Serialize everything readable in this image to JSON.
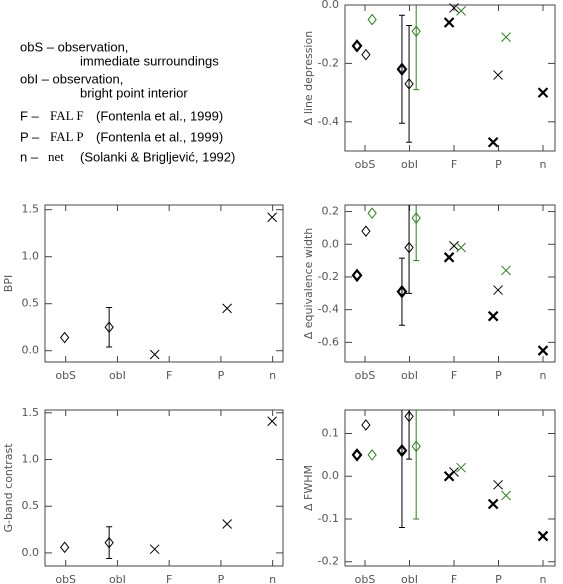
{
  "key_text": [
    {
      "label": "obS – observation,",
      "sub": "immediate surroundings"
    },
    {
      "label": "obI – observation,",
      "sub": "bright point interior"
    },
    {
      "label": "F –",
      "model": "FAL F",
      "ref": "(Fontenla et al., 1999)"
    },
    {
      "label": "P –",
      "model": "FAL P",
      "ref": "(Fontenla et al., 1999)"
    },
    {
      "label": "n –",
      "model": "net",
      "ref": "(Solanki & Brigljević, 1992)"
    }
  ],
  "chart_data": [
    {
      "type": "scatter",
      "y_label": "Δ line depression",
      "xlim": [
        0.55,
        5.27
      ],
      "ylim": [
        -0.5,
        0.0
      ],
      "xticks": [
        {
          "value": 1,
          "label": "obS"
        },
        {
          "value": 2,
          "label": "obI"
        },
        {
          "value": 3,
          "label": "F"
        },
        {
          "value": 4,
          "label": "P"
        },
        {
          "value": 5,
          "label": "n"
        }
      ],
      "yticks": [
        -0.4,
        -0.2,
        {
          "value": 0,
          "label": "0.0"
        }
      ],
      "series": [
        {
          "marker": "diamond",
          "color": "#000000",
          "linewidth": 2.2,
          "x": [
            0.82,
            1.83
          ],
          "values": [
            -0.14,
            -0.22
          ],
          "errors": [
            null,
            0.185
          ]
        },
        {
          "marker": "diamond",
          "color": "#000000",
          "linewidth": 1,
          "x": [
            1.02,
            1.99
          ],
          "values": [
            -0.17,
            -0.27
          ],
          "errors": [
            null,
            0.2
          ]
        },
        {
          "marker": "diamond",
          "color": "#2e7d1f",
          "linewidth": 1,
          "x": [
            1.16,
            2.15
          ],
          "values": [
            -0.05,
            -0.09
          ],
          "errors": [
            null,
            0.2
          ]
        },
        {
          "marker": "cross",
          "color": "#000000",
          "linewidth": 2.2,
          "x": [
            2.89,
            3.88,
            5.0
          ],
          "values": [
            -0.06,
            -0.47,
            -0.3
          ]
        },
        {
          "marker": "cross",
          "color": "#000000",
          "linewidth": 1,
          "x": [
            3.0,
            3.99
          ],
          "values": [
            -0.01,
            -0.24
          ]
        },
        {
          "marker": "cross",
          "color": "#2e7d1f",
          "linewidth": 1,
          "x": [
            3.16,
            4.17
          ],
          "values": [
            -0.02,
            -0.11
          ]
        }
      ]
    },
    {
      "type": "scatter",
      "y_label": "BPI",
      "xlim": [
        0.6,
        5.2
      ],
      "ylim": [
        -0.12,
        1.55
      ],
      "xticks": [
        {
          "value": 1,
          "label": "obS"
        },
        {
          "value": 2,
          "label": "obI"
        },
        {
          "value": 3,
          "label": "F"
        },
        {
          "value": 4,
          "label": "P"
        },
        {
          "value": 5,
          "label": "n"
        }
      ],
      "yticks": [
        {
          "value": 0,
          "label": "0.0"
        },
        0.5,
        {
          "value": 1,
          "label": "1.0"
        },
        1.5
      ],
      "series": [
        {
          "marker": "diamond",
          "color": "#000000",
          "linewidth": 1,
          "x": [
            0.98,
            1.84
          ],
          "values": [
            0.14,
            0.25
          ],
          "errors": [
            null,
            0.21
          ]
        },
        {
          "marker": "cross",
          "color": "#000000",
          "linewidth": 1,
          "x": [
            2.72,
            4.12,
            4.99
          ],
          "values": [
            -0.04,
            0.45,
            1.42
          ]
        }
      ]
    },
    {
      "type": "scatter",
      "y_label": "Δ equivalence width",
      "xlim": [
        0.55,
        5.27
      ],
      "ylim": [
        -0.72,
        0.24
      ],
      "xticks": [
        {
          "value": 1,
          "label": "obS"
        },
        {
          "value": 2,
          "label": "obI"
        },
        {
          "value": 3,
          "label": "F"
        },
        {
          "value": 4,
          "label": "P"
        },
        {
          "value": 5,
          "label": "n"
        }
      ],
      "yticks": [
        -0.6,
        -0.4,
        -0.2,
        {
          "value": 0,
          "label": "0.0"
        },
        0.2
      ],
      "series": [
        {
          "marker": "diamond",
          "color": "#000000",
          "linewidth": 2.2,
          "x": [
            0.82,
            1.83
          ],
          "values": [
            -0.19,
            -0.29
          ],
          "errors": [
            null,
            0.205
          ]
        },
        {
          "marker": "diamond",
          "color": "#000000",
          "linewidth": 1,
          "x": [
            1.02,
            1.99
          ],
          "values": [
            0.08,
            -0.02
          ],
          "errors": [
            null,
            0.28
          ]
        },
        {
          "marker": "diamond",
          "color": "#2e7d1f",
          "linewidth": 1,
          "x": [
            1.16,
            2.15
          ],
          "values": [
            0.19,
            0.16
          ],
          "errors": [
            null,
            0.26
          ]
        },
        {
          "marker": "cross",
          "color": "#000000",
          "linewidth": 2.2,
          "x": [
            2.89,
            3.88,
            5.0
          ],
          "values": [
            -0.08,
            -0.44,
            -0.65
          ]
        },
        {
          "marker": "cross",
          "color": "#000000",
          "linewidth": 1,
          "x": [
            3.0,
            3.99
          ],
          "values": [
            -0.01,
            -0.28
          ]
        },
        {
          "marker": "cross",
          "color": "#2e7d1f",
          "linewidth": 1,
          "x": [
            3.16,
            4.17
          ],
          "values": [
            -0.02,
            -0.16
          ]
        }
      ]
    },
    {
      "type": "scatter",
      "y_label": "G-band contrast",
      "xlim": [
        0.6,
        5.2
      ],
      "ylim": [
        -0.14,
        1.53
      ],
      "xticks": [
        {
          "value": 1,
          "label": "obS"
        },
        {
          "value": 2,
          "label": "obI"
        },
        {
          "value": 3,
          "label": "F"
        },
        {
          "value": 4,
          "label": "P"
        },
        {
          "value": 5,
          "label": "n"
        }
      ],
      "yticks": [
        {
          "value": 0,
          "label": "0.0"
        },
        0.5,
        {
          "value": 1,
          "label": "1.0"
        },
        1.5
      ],
      "series": [
        {
          "marker": "diamond",
          "color": "#000000",
          "linewidth": 1,
          "x": [
            0.98,
            1.84
          ],
          "values": [
            0.06,
            0.11
          ],
          "errors": [
            null,
            0.17
          ]
        },
        {
          "marker": "cross",
          "color": "#000000",
          "linewidth": 1,
          "x": [
            2.72,
            4.12,
            4.99
          ],
          "values": [
            0.04,
            0.31,
            1.41
          ]
        }
      ]
    },
    {
      "type": "scatter",
      "y_label": "Δ FWHM",
      "xlim": [
        0.55,
        5.27
      ],
      "ylim": [
        -0.21,
        0.155
      ],
      "xticks": [
        {
          "value": 1,
          "label": "obS"
        },
        {
          "value": 2,
          "label": "obI"
        },
        {
          "value": 3,
          "label": "F"
        },
        {
          "value": 4,
          "label": "P"
        },
        {
          "value": 5,
          "label": "n"
        }
      ],
      "yticks": [
        -0.2,
        -0.1,
        {
          "value": 0,
          "label": "0.0"
        },
        0.1
      ],
      "series": [
        {
          "marker": "diamond",
          "color": "#000000",
          "linewidth": 2.2,
          "x": [
            0.82,
            1.83
          ],
          "values": [
            0.05,
            0.06
          ],
          "errors": [
            null,
            0.18
          ]
        },
        {
          "marker": "diamond",
          "color": "#000000",
          "linewidth": 1,
          "x": [
            1.02,
            1.99
          ],
          "values": [
            0.12,
            0.14
          ],
          "errors": [
            null,
            0.1
          ]
        },
        {
          "marker": "diamond",
          "color": "#2e7d1f",
          "linewidth": 1,
          "x": [
            1.16,
            2.15
          ],
          "values": [
            0.05,
            0.07
          ],
          "errors": [
            null,
            0.17
          ]
        },
        {
          "marker": "cross",
          "color": "#000000",
          "linewidth": 2.2,
          "x": [
            2.89,
            3.88,
            5.0
          ],
          "values": [
            0.0,
            -0.065,
            -0.14
          ]
        },
        {
          "marker": "cross",
          "color": "#000000",
          "linewidth": 1,
          "x": [
            3.0,
            3.99
          ],
          "values": [
            0.01,
            -0.02
          ]
        },
        {
          "marker": "cross",
          "color": "#2e7d1f",
          "linewidth": 1,
          "x": [
            3.16,
            4.17
          ],
          "values": [
            0.02,
            -0.045
          ]
        }
      ]
    }
  ]
}
